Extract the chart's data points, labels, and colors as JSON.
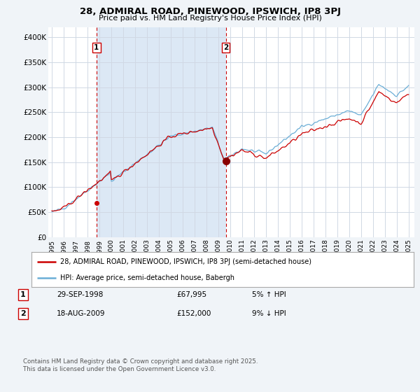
{
  "title": "28, ADMIRAL ROAD, PINEWOOD, IPSWICH, IP8 3PJ",
  "subtitle": "Price paid vs. HM Land Registry's House Price Index (HPI)",
  "ylabel_ticks": [
    "£0",
    "£50K",
    "£100K",
    "£150K",
    "£200K",
    "£250K",
    "£300K",
    "£350K",
    "£400K"
  ],
  "ytick_vals": [
    0,
    50000,
    100000,
    150000,
    200000,
    250000,
    300000,
    350000,
    400000
  ],
  "ylim": [
    0,
    420000
  ],
  "legend_line1": "28, ADMIRAL ROAD, PINEWOOD, IPSWICH, IP8 3PJ (semi-detached house)",
  "legend_line2": "HPI: Average price, semi-detached house, Babergh",
  "marker1_date": "29-SEP-1998",
  "marker1_price": "£67,995",
  "marker1_hpi": "5% ↑ HPI",
  "marker1_year": 1998.75,
  "marker1_value": 67995,
  "marker2_date": "18-AUG-2009",
  "marker2_price": "£152,000",
  "marker2_hpi": "9% ↓ HPI",
  "marker2_year": 2009.63,
  "marker2_value": 152000,
  "line_color_red": "#cc0000",
  "line_color_blue": "#6baed6",
  "marker_vline_color": "#cc0000",
  "marker_box_color": "#cc0000",
  "grid_color": "#d0d8e4",
  "shade_color": "#dce8f5",
  "background_color": "#f0f4f8",
  "chart_bg": "#ffffff",
  "footer": "Contains HM Land Registry data © Crown copyright and database right 2025.\nThis data is licensed under the Open Government Licence v3.0.",
  "hpi_years": [
    1995.0,
    1995.08,
    1995.17,
    1995.25,
    1995.33,
    1995.42,
    1995.5,
    1995.58,
    1995.67,
    1995.75,
    1995.83,
    1995.92,
    1996.0,
    1996.08,
    1996.17,
    1996.25,
    1996.33,
    1996.42,
    1996.5,
    1996.58,
    1996.67,
    1996.75,
    1996.83,
    1996.92,
    1997.0,
    1997.08,
    1997.17,
    1997.25,
    1997.33,
    1997.42,
    1997.5,
    1997.58,
    1997.67,
    1997.75,
    1997.83,
    1997.92,
    1998.0,
    1998.08,
    1998.17,
    1998.25,
    1998.33,
    1998.42,
    1998.5,
    1998.58,
    1998.67,
    1998.75,
    1998.83,
    1998.92,
    1999.0,
    1999.08,
    1999.17,
    1999.25,
    1999.33,
    1999.42,
    1999.5,
    1999.58,
    1999.67,
    1999.75,
    1999.83,
    1999.92,
    2000.0,
    2000.08,
    2000.17,
    2000.25,
    2000.33,
    2000.42,
    2000.5,
    2000.58,
    2000.67,
    2000.75,
    2000.83,
    2000.92,
    2001.0,
    2001.08,
    2001.17,
    2001.25,
    2001.33,
    2001.42,
    2001.5,
    2001.58,
    2001.67,
    2001.75,
    2001.83,
    2001.92,
    2002.0,
    2002.08,
    2002.17,
    2002.25,
    2002.33,
    2002.42,
    2002.5,
    2002.58,
    2002.67,
    2002.75,
    2002.83,
    2002.92,
    2003.0,
    2003.08,
    2003.17,
    2003.25,
    2003.33,
    2003.42,
    2003.5,
    2003.58,
    2003.67,
    2003.75,
    2003.83,
    2003.92,
    2004.0,
    2004.08,
    2004.17,
    2004.25,
    2004.33,
    2004.42,
    2004.5,
    2004.58,
    2004.67,
    2004.75,
    2004.83,
    2004.92,
    2005.0,
    2005.08,
    2005.17,
    2005.25,
    2005.33,
    2005.42,
    2005.5,
    2005.58,
    2005.67,
    2005.75,
    2005.83,
    2005.92,
    2006.0,
    2006.08,
    2006.17,
    2006.25,
    2006.33,
    2006.42,
    2006.5,
    2006.58,
    2006.67,
    2006.75,
    2006.83,
    2006.92,
    2007.0,
    2007.08,
    2007.17,
    2007.25,
    2007.33,
    2007.42,
    2007.5,
    2007.58,
    2007.67,
    2007.75,
    2007.83,
    2007.92,
    2008.0,
    2008.08,
    2008.17,
    2008.25,
    2008.33,
    2008.42,
    2008.5,
    2008.58,
    2008.67,
    2008.75,
    2008.83,
    2008.92,
    2009.0,
    2009.08,
    2009.17,
    2009.25,
    2009.33,
    2009.42,
    2009.5,
    2009.58,
    2009.67,
    2009.75,
    2009.83,
    2009.92,
    2010.0,
    2010.08,
    2010.17,
    2010.25,
    2010.33,
    2010.42,
    2010.5,
    2010.58,
    2010.67,
    2010.75,
    2010.83,
    2010.92,
    2011.0,
    2011.08,
    2011.17,
    2011.25,
    2011.33,
    2011.42,
    2011.5,
    2011.58,
    2011.67,
    2011.75,
    2011.83,
    2011.92,
    2012.0,
    2012.08,
    2012.17,
    2012.25,
    2012.33,
    2012.42,
    2012.5,
    2012.58,
    2012.67,
    2012.75,
    2012.83,
    2012.92,
    2013.0,
    2013.08,
    2013.17,
    2013.25,
    2013.33,
    2013.42,
    2013.5,
    2013.58,
    2013.67,
    2013.75,
    2013.83,
    2013.92,
    2014.0,
    2014.08,
    2014.17,
    2014.25,
    2014.33,
    2014.42,
    2014.5,
    2014.58,
    2014.67,
    2014.75,
    2014.83,
    2014.92,
    2015.0,
    2015.08,
    2015.17,
    2015.25,
    2015.33,
    2015.42,
    2015.5,
    2015.58,
    2015.67,
    2015.75,
    2015.83,
    2015.92,
    2016.0,
    2016.08,
    2016.17,
    2016.25,
    2016.33,
    2016.42,
    2016.5,
    2016.58,
    2016.67,
    2016.75,
    2016.83,
    2016.92,
    2017.0,
    2017.08,
    2017.17,
    2017.25,
    2017.33,
    2017.42,
    2017.5,
    2017.58,
    2017.67,
    2017.75,
    2017.83,
    2017.92,
    2018.0,
    2018.08,
    2018.17,
    2018.25,
    2018.33,
    2018.42,
    2018.5,
    2018.58,
    2018.67,
    2018.75,
    2018.83,
    2018.92,
    2019.0,
    2019.08,
    2019.17,
    2019.25,
    2019.33,
    2019.42,
    2019.5,
    2019.58,
    2019.67,
    2019.75,
    2019.83,
    2019.92,
    2020.0,
    2020.08,
    2020.17,
    2020.25,
    2020.33,
    2020.42,
    2020.5,
    2020.58,
    2020.67,
    2020.75,
    2020.83,
    2020.92,
    2021.0,
    2021.08,
    2021.17,
    2021.25,
    2021.33,
    2021.42,
    2021.5,
    2021.58,
    2021.67,
    2021.75,
    2021.83,
    2021.92,
    2022.0,
    2022.08,
    2022.17,
    2022.25,
    2022.33,
    2022.42,
    2022.5,
    2022.58,
    2022.67,
    2022.75,
    2022.83,
    2022.92,
    2023.0,
    2023.08,
    2023.17,
    2023.25,
    2023.33,
    2023.42,
    2023.5,
    2023.58,
    2023.67,
    2023.75,
    2023.83,
    2023.92,
    2024.0,
    2024.08,
    2024.17,
    2024.25,
    2024.33,
    2024.42,
    2024.5,
    2024.58,
    2024.67,
    2024.75,
    2024.83,
    2024.92,
    2025.0
  ],
  "xlim_min": 1994.7,
  "xlim_max": 2025.5,
  "xtick_years": [
    1995,
    1996,
    1997,
    1998,
    1999,
    2000,
    2001,
    2002,
    2003,
    2004,
    2005,
    2006,
    2007,
    2008,
    2009,
    2010,
    2011,
    2012,
    2013,
    2014,
    2015,
    2016,
    2017,
    2018,
    2019,
    2020,
    2021,
    2022,
    2023,
    2024,
    2025
  ]
}
